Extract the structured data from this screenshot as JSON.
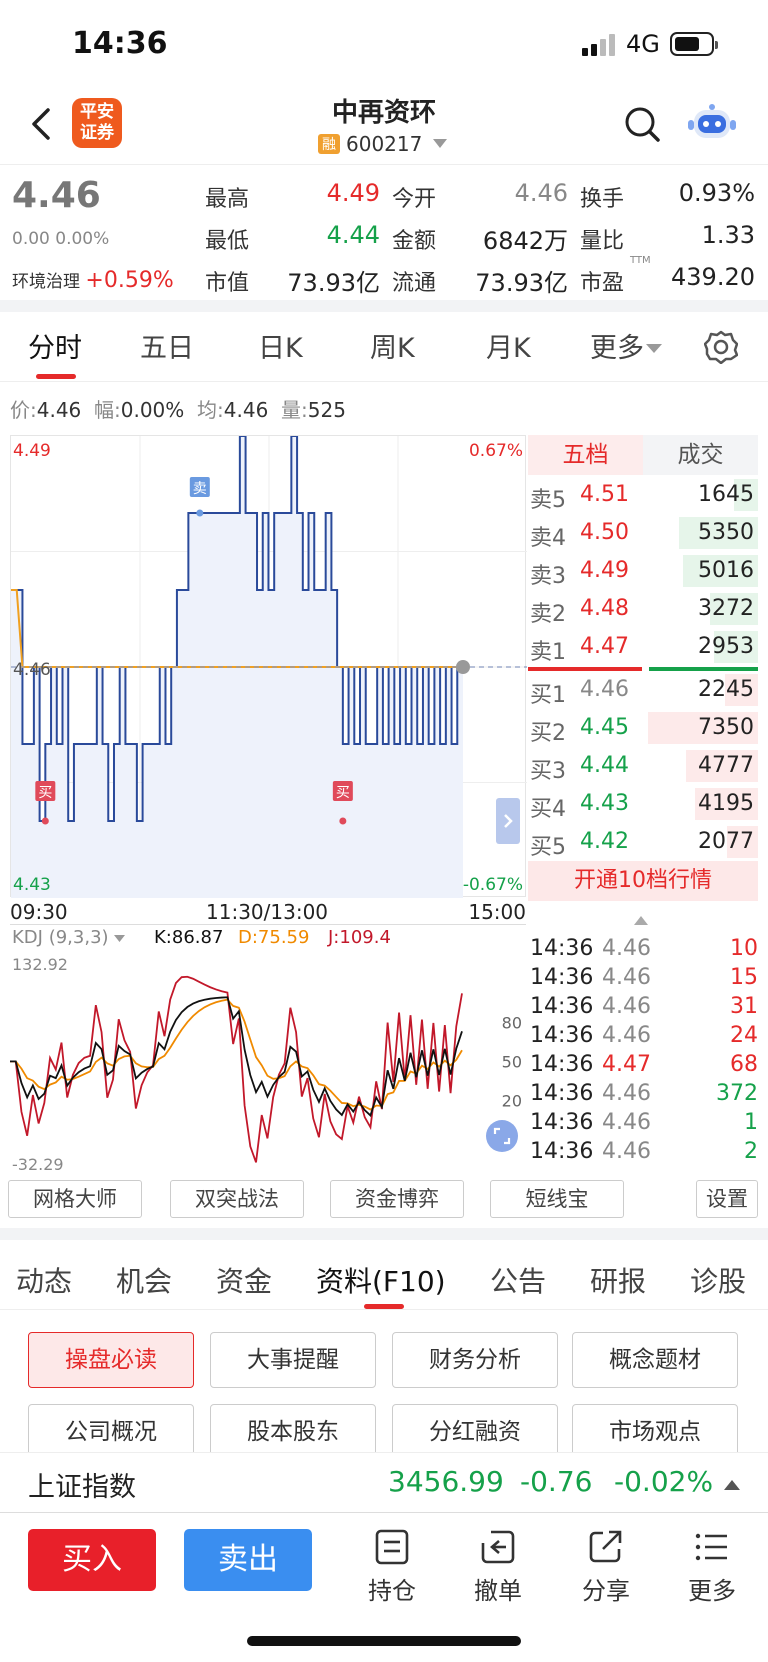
{
  "status_bar": {
    "time": "14:36",
    "network": "4G"
  },
  "header": {
    "broker_logo": "平安\n证券",
    "stock_name": "中再资环",
    "margin_tag": "融",
    "stock_code": "600217"
  },
  "quote": {
    "price": "4.46",
    "change": "0.00",
    "change_pct": "0.00%",
    "sector": "环境治理",
    "sector_change": "+0.59%",
    "fields": [
      {
        "label": "最高",
        "value": "4.49",
        "color": "#e52a2a"
      },
      {
        "label": "今开",
        "value": "4.46",
        "color": "#888888"
      },
      {
        "label": "换手",
        "value": "0.93%",
        "color": "#222222"
      },
      {
        "label": "最低",
        "value": "4.44",
        "color": "#15a14a"
      },
      {
        "label": "金额",
        "value": "6842万",
        "color": "#222222"
      },
      {
        "label": "量比",
        "value": "1.33",
        "color": "#222222"
      },
      {
        "label": "市值",
        "value": "73.93亿",
        "color": "#222222"
      },
      {
        "label": "流通",
        "value": "73.93亿",
        "color": "#222222"
      },
      {
        "label": "市盈",
        "value": "439.20",
        "color": "#222222"
      }
    ],
    "pe_sup": "TTM"
  },
  "tabs": [
    "分时",
    "五日",
    "日K",
    "周K",
    "月K",
    "更多"
  ],
  "info_line": {
    "price_label": "价:",
    "price": "4.46",
    "amp_label": "幅:",
    "amp": "0.00%",
    "avg_label": "均:",
    "avg": "4.46",
    "vol_label": "量:",
    "vol": "525"
  },
  "chart_data": {
    "type": "line",
    "y_high": "4.49",
    "y_mid": "4.46",
    "y_low": "4.43",
    "pct_high": "0.67%",
    "pct_low": "-0.67%",
    "ylim": [
      4.43,
      4.49
    ],
    "x_labels": [
      "09:30",
      "11:30/13:00",
      "15:00"
    ],
    "sell_marker": "卖",
    "buy_marker": "买",
    "price": [
      4.47,
      4.47,
      4.45,
      4.45,
      4.46,
      4.44,
      4.45,
      4.46,
      4.45,
      4.46,
      4.44,
      4.45,
      4.45,
      4.45,
      4.45,
      4.46,
      4.45,
      4.44,
      4.45,
      4.46,
      4.45,
      4.45,
      4.44,
      4.45,
      4.45,
      4.45,
      4.46,
      4.45,
      4.46,
      4.47,
      4.47,
      4.48,
      4.48,
      4.48,
      4.48,
      4.48,
      4.48,
      4.48,
      4.48,
      4.48,
      4.49,
      4.48,
      4.48,
      4.47,
      4.48,
      4.47,
      4.48,
      4.48,
      4.48,
      4.49,
      4.48,
      4.47,
      4.48,
      4.47,
      4.47,
      4.48,
      4.47,
      4.46,
      4.45,
      4.46,
      4.45,
      4.46,
      4.45,
      4.45,
      4.46,
      4.45,
      4.46,
      4.45,
      4.46,
      4.45,
      4.46,
      4.45,
      4.46,
      4.45,
      4.46,
      4.45,
      4.46,
      4.45,
      4.46,
      4.46
    ],
    "avg": [
      4.47,
      4.47,
      4.46,
      4.46,
      4.46,
      4.46,
      4.46,
      4.46,
      4.46,
      4.46,
      4.46,
      4.46,
      4.46,
      4.46,
      4.46,
      4.46,
      4.46,
      4.46,
      4.46,
      4.46,
      4.46,
      4.46,
      4.46,
      4.46,
      4.46,
      4.46,
      4.46,
      4.46,
      4.46,
      4.46,
      4.46,
      4.46,
      4.46,
      4.46,
      4.46,
      4.46,
      4.46,
      4.46,
      4.46,
      4.46,
      4.46,
      4.46,
      4.46,
      4.46,
      4.46,
      4.46,
      4.46,
      4.46,
      4.46,
      4.46,
      4.46,
      4.46,
      4.46,
      4.46,
      4.46,
      4.46,
      4.46,
      4.46,
      4.46,
      4.46,
      4.46,
      4.46,
      4.46,
      4.46,
      4.46,
      4.46,
      4.46,
      4.46,
      4.46,
      4.46,
      4.46,
      4.46,
      4.46,
      4.46,
      4.46,
      4.46,
      4.46,
      4.46,
      4.46,
      4.46
    ]
  },
  "order_book": {
    "tab_levels": "五档",
    "tab_trades": "成交",
    "asks": [
      {
        "label": "卖5",
        "price": "4.51",
        "vol": "1645",
        "ratio": 0.22
      },
      {
        "label": "卖4",
        "price": "4.50",
        "vol": "5350",
        "ratio": 0.72
      },
      {
        "label": "卖3",
        "price": "4.49",
        "vol": "5016",
        "ratio": 0.68
      },
      {
        "label": "卖2",
        "price": "4.48",
        "vol": "3272",
        "ratio": 0.44
      },
      {
        "label": "卖1",
        "price": "4.47",
        "vol": "2953",
        "ratio": 0.4
      }
    ],
    "bids": [
      {
        "label": "买1",
        "price": "4.46",
        "vol": "2245",
        "ratio": 0.3
      },
      {
        "label": "买2",
        "price": "4.45",
        "vol": "7350",
        "ratio": 1.0
      },
      {
        "label": "买3",
        "price": "4.44",
        "vol": "4777",
        "ratio": 0.65
      },
      {
        "label": "买4",
        "price": "4.43",
        "vol": "4195",
        "ratio": 0.57
      },
      {
        "label": "买5",
        "price": "4.42",
        "vol": "2077",
        "ratio": 0.28
      }
    ],
    "upgrade": "开通10档行情"
  },
  "kdj": {
    "name": "KDJ (9,3,3)",
    "k": "K:86.87",
    "d": "D:75.59",
    "j": "J:109.4",
    "max": "132.92",
    "min": "-32.29",
    "ticks": [
      "80",
      "50",
      "20"
    ]
  },
  "trades": [
    {
      "time": "14:36",
      "price": "4.46",
      "vol": "10",
      "pcolor": "#888888",
      "vcolor": "#e52a2a"
    },
    {
      "time": "14:36",
      "price": "4.46",
      "vol": "15",
      "pcolor": "#888888",
      "vcolor": "#e52a2a"
    },
    {
      "time": "14:36",
      "price": "4.46",
      "vol": "31",
      "pcolor": "#888888",
      "vcolor": "#e52a2a"
    },
    {
      "time": "14:36",
      "price": "4.46",
      "vol": "24",
      "pcolor": "#888888",
      "vcolor": "#e52a2a"
    },
    {
      "time": "14:36",
      "price": "4.47",
      "vol": "68",
      "pcolor": "#e52a2a",
      "vcolor": "#e52a2a"
    },
    {
      "time": "14:36",
      "price": "4.46",
      "vol": "372",
      "pcolor": "#888888",
      "vcolor": "#15a14a"
    },
    {
      "time": "14:36",
      "price": "4.46",
      "vol": "1",
      "pcolor": "#888888",
      "vcolor": "#15a14a"
    },
    {
      "time": "14:36",
      "price": "4.46",
      "vol": "2",
      "pcolor": "#888888",
      "vcolor": "#15a14a"
    }
  ],
  "tools": [
    "网格大师",
    "双突战法",
    "资金博弈",
    "短线宝",
    "设置"
  ],
  "f10_tabs": [
    "动态",
    "机会",
    "资金",
    "资料(F10)",
    "公告",
    "研报",
    "诊股"
  ],
  "f10_buttons": [
    "操盘必读",
    "大事提醒",
    "财务分析",
    "概念题材",
    "公司概况",
    "股本股东",
    "分红融资",
    "市场观点"
  ],
  "index_bar": {
    "name": "上证指数",
    "value": "3456.99",
    "change": "-0.76",
    "pct": "-0.02%"
  },
  "bottom_bar": {
    "buy": "买入",
    "sell": "卖出",
    "actions": [
      "持仓",
      "撤单",
      "分享",
      "更多"
    ]
  },
  "colors": {
    "up": "#e52a2a",
    "down": "#15a14a",
    "line": "#2a4a9a",
    "avg": "#f0a020",
    "buy_btn": "#e8202a",
    "sell_btn": "#3a8ef0"
  }
}
